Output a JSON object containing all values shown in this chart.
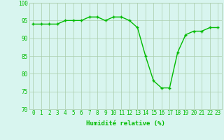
{
  "x": [
    0,
    1,
    2,
    3,
    4,
    5,
    6,
    7,
    8,
    9,
    10,
    11,
    12,
    13,
    14,
    15,
    16,
    17,
    18,
    19,
    20,
    21,
    22,
    23
  ],
  "y": [
    94,
    94,
    94,
    94,
    95,
    95,
    95,
    96,
    96,
    95,
    96,
    96,
    95,
    93,
    85,
    78,
    76,
    76,
    86,
    91,
    92,
    92,
    93,
    93
  ],
  "line_color": "#00bb00",
  "marker": "+",
  "bg_color": "#d8f5ef",
  "grid_color": "#aaccaa",
  "xlabel": "Humidité relative (%)",
  "ylim": [
    70,
    100
  ],
  "xlim": [
    -0.5,
    23.5
  ],
  "yticks": [
    70,
    75,
    80,
    85,
    90,
    95,
    100
  ],
  "xticks": [
    0,
    1,
    2,
    3,
    4,
    5,
    6,
    7,
    8,
    9,
    10,
    11,
    12,
    13,
    14,
    15,
    16,
    17,
    18,
    19,
    20,
    21,
    22,
    23
  ],
  "xlabel_fontsize": 6.5,
  "tick_fontsize": 5.5,
  "line_width": 1.0,
  "marker_size": 3.5
}
